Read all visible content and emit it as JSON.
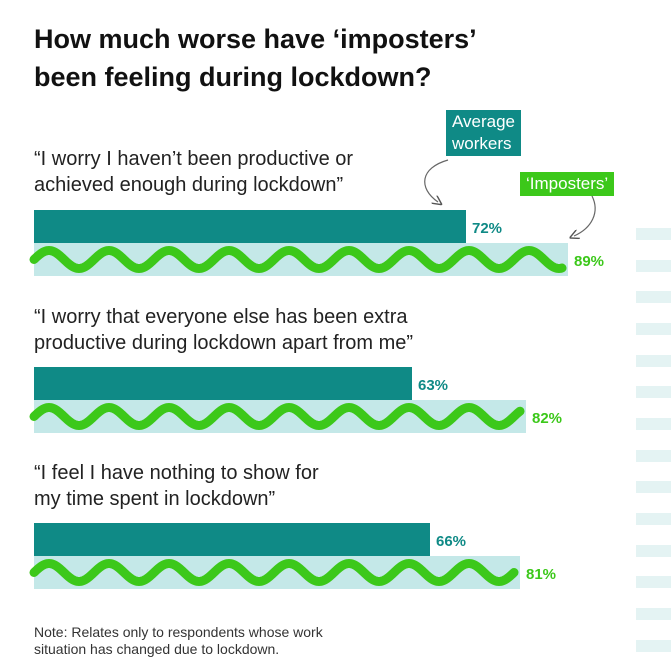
{
  "title": {
    "line1": "How much worse have ‘imposters’",
    "line2": "been feeling during lockdown?"
  },
  "legend": {
    "average": {
      "line1": "Average",
      "line2": "workers"
    },
    "imposters": "‘Imposters’"
  },
  "note": {
    "line1": "Note: Relates only to respondents whose work",
    "line2": "situation has changed due to lockdown."
  },
  "colors": {
    "average": "#0f8a86",
    "imposters": "#3cc81a",
    "track": "#c4e8e8"
  },
  "chart_data": {
    "type": "bar",
    "orientation": "horizontal",
    "unit": "%",
    "xlim": [
      0,
      100
    ],
    "categories": [
      {
        "line1": "“I worry I haven’t been productive or",
        "line2": "achieved enough during lockdown”"
      },
      {
        "line1": "“I worry that everyone else has been extra",
        "line2": "productive during lockdown apart from me”"
      },
      {
        "line1": "“I feel I have nothing to show for",
        "line2": "my time spent in lockdown”"
      }
    ],
    "series": [
      {
        "name": "Average workers",
        "values": [
          72,
          63,
          66
        ],
        "labels": [
          "72%",
          "63%",
          "66%"
        ]
      },
      {
        "name": "‘Imposters’",
        "values": [
          89,
          82,
          81
        ],
        "labels": [
          "89%",
          "82%",
          "81%"
        ]
      }
    ]
  }
}
